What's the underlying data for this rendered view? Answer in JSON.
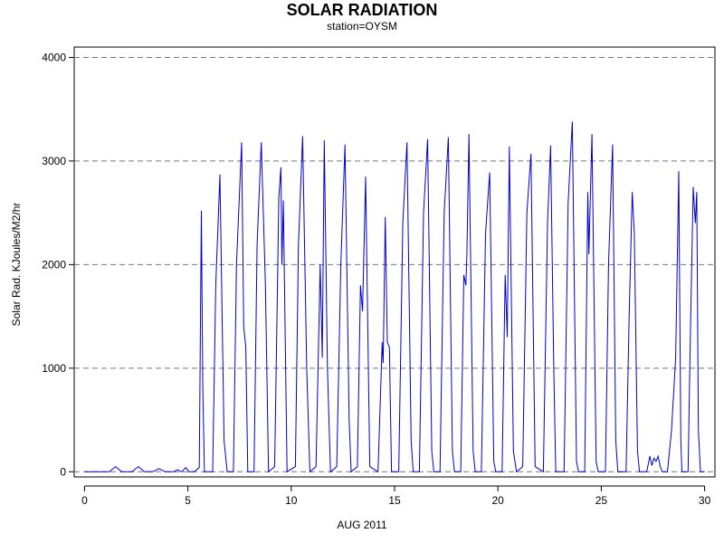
{
  "chart_data": {
    "type": "line",
    "title": "SOLAR RADIATION",
    "subtitle": "station=OYSM",
    "xlabel": "AUG 2011",
    "ylabel": "Solar Rad. KJoules/M2/hr",
    "xlim": [
      -0.5,
      30.5
    ],
    "ylim": [
      -50,
      4100
    ],
    "x_ticks": [
      0,
      5,
      10,
      15,
      20,
      25,
      30
    ],
    "y_ticks": [
      0,
      1000,
      2000,
      3000,
      4000
    ],
    "grid": "horizontal-dashed",
    "line_color": "#0000cc",
    "series": [
      {
        "values": [
          [
            0.0,
            0
          ],
          [
            1.2,
            0
          ],
          [
            1.5,
            50
          ],
          [
            1.8,
            0
          ],
          [
            2.3,
            0
          ],
          [
            2.6,
            50
          ],
          [
            2.9,
            0
          ],
          [
            3.3,
            0
          ],
          [
            3.6,
            30
          ],
          [
            3.9,
            0
          ],
          [
            4.3,
            0
          ],
          [
            4.5,
            20
          ],
          [
            4.7,
            0
          ],
          [
            4.9,
            40
          ],
          [
            5.05,
            0
          ],
          [
            5.3,
            0
          ],
          [
            5.55,
            40
          ],
          [
            5.65,
            2520
          ],
          [
            5.72,
            800
          ],
          [
            5.8,
            0
          ],
          [
            6.2,
            0
          ],
          [
            6.35,
            1800
          ],
          [
            6.55,
            2870
          ],
          [
            6.75,
            300
          ],
          [
            6.9,
            0
          ],
          [
            7.2,
            0
          ],
          [
            7.35,
            2000
          ],
          [
            7.6,
            3180
          ],
          [
            7.7,
            1400
          ],
          [
            7.8,
            1200
          ],
          [
            7.9,
            0
          ],
          [
            8.2,
            0
          ],
          [
            8.35,
            2200
          ],
          [
            8.55,
            3180
          ],
          [
            8.75,
            1800
          ],
          [
            8.9,
            0
          ],
          [
            9.2,
            50
          ],
          [
            9.4,
            2650
          ],
          [
            9.5,
            2940
          ],
          [
            9.55,
            2000
          ],
          [
            9.62,
            2620
          ],
          [
            9.8,
            0
          ],
          [
            10.2,
            50
          ],
          [
            10.35,
            2200
          ],
          [
            10.55,
            3240
          ],
          [
            10.75,
            1000
          ],
          [
            10.9,
            0
          ],
          [
            11.2,
            50
          ],
          [
            11.4,
            2000
          ],
          [
            11.5,
            1100
          ],
          [
            11.6,
            3200
          ],
          [
            11.75,
            1000
          ],
          [
            11.9,
            0
          ],
          [
            12.2,
            50
          ],
          [
            12.4,
            2000
          ],
          [
            12.6,
            3160
          ],
          [
            12.8,
            500
          ],
          [
            12.9,
            0
          ],
          [
            13.2,
            50
          ],
          [
            13.35,
            1800
          ],
          [
            13.45,
            1550
          ],
          [
            13.6,
            2850
          ],
          [
            13.8,
            50
          ],
          [
            14.2,
            0
          ],
          [
            14.4,
            1250
          ],
          [
            14.45,
            1050
          ],
          [
            14.55,
            2460
          ],
          [
            14.65,
            1250
          ],
          [
            14.75,
            1200
          ],
          [
            14.85,
            0
          ],
          [
            15.2,
            0
          ],
          [
            15.4,
            2400
          ],
          [
            15.6,
            3180
          ],
          [
            15.8,
            300
          ],
          [
            15.9,
            0
          ],
          [
            16.2,
            0
          ],
          [
            16.4,
            2500
          ],
          [
            16.6,
            3210
          ],
          [
            16.8,
            200
          ],
          [
            16.9,
            0
          ],
          [
            17.2,
            0
          ],
          [
            17.4,
            2500
          ],
          [
            17.6,
            3230
          ],
          [
            17.8,
            200
          ],
          [
            17.9,
            0
          ],
          [
            18.2,
            0
          ],
          [
            18.35,
            1900
          ],
          [
            18.45,
            1800
          ],
          [
            18.5,
            2100
          ],
          [
            18.6,
            3260
          ],
          [
            18.8,
            200
          ],
          [
            18.9,
            0
          ],
          [
            19.2,
            0
          ],
          [
            19.4,
            2300
          ],
          [
            19.6,
            2890
          ],
          [
            19.8,
            100
          ],
          [
            19.9,
            0
          ],
          [
            20.2,
            0
          ],
          [
            20.35,
            1900
          ],
          [
            20.45,
            1300
          ],
          [
            20.55,
            3140
          ],
          [
            20.75,
            200
          ],
          [
            20.9,
            0
          ],
          [
            21.2,
            50
          ],
          [
            21.4,
            2500
          ],
          [
            21.6,
            3070
          ],
          [
            21.8,
            50
          ],
          [
            22.2,
            0
          ],
          [
            22.4,
            2400
          ],
          [
            22.55,
            3150
          ],
          [
            22.7,
            1000
          ],
          [
            22.8,
            0
          ],
          [
            23.2,
            0
          ],
          [
            23.4,
            2600
          ],
          [
            23.6,
            3380
          ],
          [
            23.8,
            100
          ],
          [
            23.9,
            0
          ],
          [
            24.2,
            0
          ],
          [
            24.35,
            2700
          ],
          [
            24.4,
            2100
          ],
          [
            24.55,
            3260
          ],
          [
            24.75,
            100
          ],
          [
            24.85,
            0
          ],
          [
            25.2,
            0
          ],
          [
            25.35,
            2000
          ],
          [
            25.55,
            3160
          ],
          [
            25.7,
            300
          ],
          [
            25.8,
            0
          ],
          [
            26.2,
            0
          ],
          [
            26.35,
            1500
          ],
          [
            26.5,
            2700
          ],
          [
            26.6,
            2300
          ],
          [
            26.75,
            200
          ],
          [
            26.85,
            0
          ],
          [
            27.2,
            0
          ],
          [
            27.35,
            150
          ],
          [
            27.45,
            60
          ],
          [
            27.55,
            130
          ],
          [
            27.65,
            100
          ],
          [
            27.75,
            150
          ],
          [
            27.85,
            50
          ],
          [
            27.95,
            0
          ],
          [
            28.2,
            0
          ],
          [
            28.4,
            400
          ],
          [
            28.6,
            1100
          ],
          [
            28.75,
            2900
          ],
          [
            28.85,
            300
          ],
          [
            28.9,
            0
          ],
          [
            29.2,
            0
          ],
          [
            29.3,
            1200
          ],
          [
            29.45,
            2750
          ],
          [
            29.55,
            2400
          ],
          [
            29.62,
            2700
          ],
          [
            29.7,
            400
          ],
          [
            29.8,
            0
          ],
          [
            30.0,
            0
          ]
        ]
      }
    ]
  }
}
